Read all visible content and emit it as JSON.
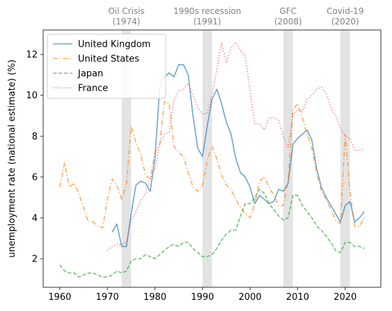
{
  "chart_data": {
    "type": "line",
    "ylabel": "unemployment rate (national estimate) (%)",
    "xlabel": "",
    "xlim": [
      1956.5,
      2027.5
    ],
    "ylim": [
      0.6,
      13.2
    ],
    "xticks": [
      1960,
      1970,
      1980,
      1990,
      2000,
      2010,
      2020
    ],
    "yticks": [
      2,
      4,
      6,
      8,
      10,
      12
    ],
    "grid": false,
    "legend_position": "top-left",
    "events": [
      {
        "name": "Oil Crisis",
        "year_label": "(1974)",
        "start": 1973,
        "end": 1975
      },
      {
        "name": "1990s recession",
        "year_label": "(1991)",
        "start": 1990,
        "end": 1992
      },
      {
        "name": "GFC",
        "year_label": "(2008)",
        "start": 2007,
        "end": 2009
      },
      {
        "name": "Covid-19",
        "year_label": "(2020)",
        "start": 2019,
        "end": 2021
      }
    ],
    "series": [
      {
        "name": "United Kingdom",
        "color": "#1f77b4",
        "dash": "solid",
        "x": [
          1971,
          1972,
          1973,
          1974,
          1975,
          1976,
          1977,
          1978,
          1979,
          1980,
          1981,
          1982,
          1983,
          1984,
          1985,
          1986,
          1987,
          1988,
          1989,
          1990,
          1991,
          1992,
          1993,
          1994,
          1995,
          1996,
          1997,
          1998,
          1999,
          2000,
          2001,
          2002,
          2003,
          2004,
          2005,
          2006,
          2007,
          2008,
          2009,
          2010,
          2011,
          2012,
          2013,
          2014,
          2015,
          2016,
          2017,
          2018,
          2019,
          2020,
          2021,
          2022,
          2023,
          2024
        ],
        "y": [
          3.3,
          3.7,
          2.6,
          2.6,
          4.2,
          5.6,
          5.8,
          5.7,
          5.3,
          6.9,
          10.4,
          10.9,
          11.1,
          10.9,
          11.5,
          11.5,
          11.0,
          9.0,
          7.4,
          7.0,
          8.5,
          9.8,
          10.3,
          9.6,
          8.7,
          8.1,
          6.9,
          6.2,
          6.0,
          5.5,
          4.7,
          5.1,
          4.9,
          4.7,
          4.8,
          5.4,
          5.3,
          5.7,
          7.6,
          7.9,
          8.1,
          8.3,
          7.8,
          6.4,
          5.5,
          5.0,
          4.6,
          4.2,
          3.8,
          4.6,
          4.8,
          3.8,
          4.0,
          4.3
        ]
      },
      {
        "name": "United States",
        "color": "#ff7f0e",
        "dash": "dashdot",
        "x": [
          1960,
          1961,
          1962,
          1963,
          1964,
          1965,
          1966,
          1967,
          1968,
          1969,
          1970,
          1971,
          1972,
          1973,
          1974,
          1975,
          1976,
          1977,
          1978,
          1979,
          1980,
          1981,
          1982,
          1983,
          1984,
          1985,
          1986,
          1987,
          1988,
          1989,
          1990,
          1991,
          1992,
          1993,
          1994,
          1995,
          1996,
          1997,
          1998,
          1999,
          2000,
          2001,
          2002,
          2003,
          2004,
          2005,
          2006,
          2007,
          2008,
          2009,
          2010,
          2011,
          2012,
          2013,
          2014,
          2015,
          2016,
          2017,
          2018,
          2019,
          2020,
          2021,
          2022,
          2023,
          2024
        ],
        "y": [
          5.5,
          6.7,
          5.5,
          5.7,
          5.2,
          4.5,
          3.8,
          3.8,
          3.6,
          3.5,
          4.9,
          5.9,
          5.6,
          4.9,
          5.6,
          8.5,
          7.7,
          7.1,
          6.1,
          5.9,
          7.2,
          7.6,
          9.7,
          9.6,
          7.5,
          7.2,
          7.0,
          6.2,
          5.5,
          5.3,
          5.6,
          6.8,
          7.5,
          6.9,
          6.1,
          5.6,
          5.4,
          4.9,
          4.5,
          4.2,
          4.0,
          4.7,
          5.8,
          6.0,
          5.5,
          5.1,
          4.6,
          4.6,
          5.8,
          9.3,
          9.6,
          8.9,
          8.1,
          7.4,
          6.2,
          5.3,
          4.9,
          4.4,
          3.9,
          3.7,
          8.1,
          5.3,
          3.6,
          3.6,
          4.0
        ]
      },
      {
        "name": "Japan",
        "color": "#2ca02c",
        "dash": "dashed",
        "x": [
          1960,
          1961,
          1962,
          1963,
          1964,
          1965,
          1966,
          1967,
          1968,
          1969,
          1970,
          1971,
          1972,
          1973,
          1974,
          1975,
          1976,
          1977,
          1978,
          1979,
          1980,
          1981,
          1982,
          1983,
          1984,
          1985,
          1986,
          1987,
          1988,
          1989,
          1990,
          1991,
          1992,
          1993,
          1994,
          1995,
          1996,
          1997,
          1998,
          1999,
          2000,
          2001,
          2002,
          2003,
          2004,
          2005,
          2006,
          2007,
          2008,
          2009,
          2010,
          2011,
          2012,
          2013,
          2014,
          2015,
          2016,
          2017,
          2018,
          2019,
          2020,
          2021,
          2022,
          2023,
          2024
        ],
        "y": [
          1.7,
          1.4,
          1.3,
          1.3,
          1.1,
          1.2,
          1.3,
          1.3,
          1.2,
          1.1,
          1.1,
          1.2,
          1.4,
          1.3,
          1.4,
          1.9,
          2.0,
          2.0,
          2.2,
          2.1,
          2.0,
          2.2,
          2.4,
          2.6,
          2.7,
          2.6,
          2.8,
          2.8,
          2.5,
          2.3,
          2.1,
          2.1,
          2.2,
          2.5,
          2.9,
          3.2,
          3.4,
          3.4,
          4.1,
          4.7,
          4.7,
          5.0,
          5.4,
          5.2,
          4.7,
          4.4,
          4.1,
          3.9,
          4.0,
          5.1,
          5.1,
          4.6,
          4.3,
          4.0,
          3.6,
          3.4,
          3.1,
          2.8,
          2.4,
          2.3,
          2.8,
          2.8,
          2.6,
          2.6,
          2.5
        ]
      },
      {
        "name": "France",
        "color": "#ff474c",
        "dash": "dotted",
        "x": [
          1970,
          1971,
          1972,
          1973,
          1974,
          1975,
          1976,
          1977,
          1978,
          1979,
          1980,
          1981,
          1982,
          1983,
          1984,
          1985,
          1986,
          1987,
          1988,
          1989,
          1990,
          1991,
          1992,
          1993,
          1994,
          1995,
          1996,
          1997,
          1998,
          1999,
          2000,
          2001,
          2002,
          2003,
          2004,
          2005,
          2006,
          2007,
          2008,
          2009,
          2010,
          2011,
          2012,
          2013,
          2014,
          2015,
          2016,
          2017,
          2018,
          2019,
          2020,
          2021,
          2022,
          2023,
          2024
        ],
        "y": [
          2.4,
          2.6,
          2.7,
          2.7,
          2.8,
          3.9,
          4.3,
          4.8,
          5.2,
          5.9,
          6.4,
          7.6,
          8.1,
          8.2,
          9.8,
          10.2,
          10.3,
          10.6,
          10.0,
          9.4,
          9.1,
          9.1,
          10.1,
          11.2,
          12.6,
          11.6,
          12.3,
          12.6,
          12.2,
          11.9,
          10.2,
          8.6,
          8.6,
          8.3,
          8.9,
          8.9,
          8.8,
          8.0,
          7.4,
          9.1,
          9.3,
          9.2,
          9.8,
          10.0,
          10.3,
          10.4,
          10.1,
          9.4,
          9.0,
          8.4,
          8.0,
          7.9,
          7.3,
          7.3,
          7.4
        ]
      }
    ]
  }
}
